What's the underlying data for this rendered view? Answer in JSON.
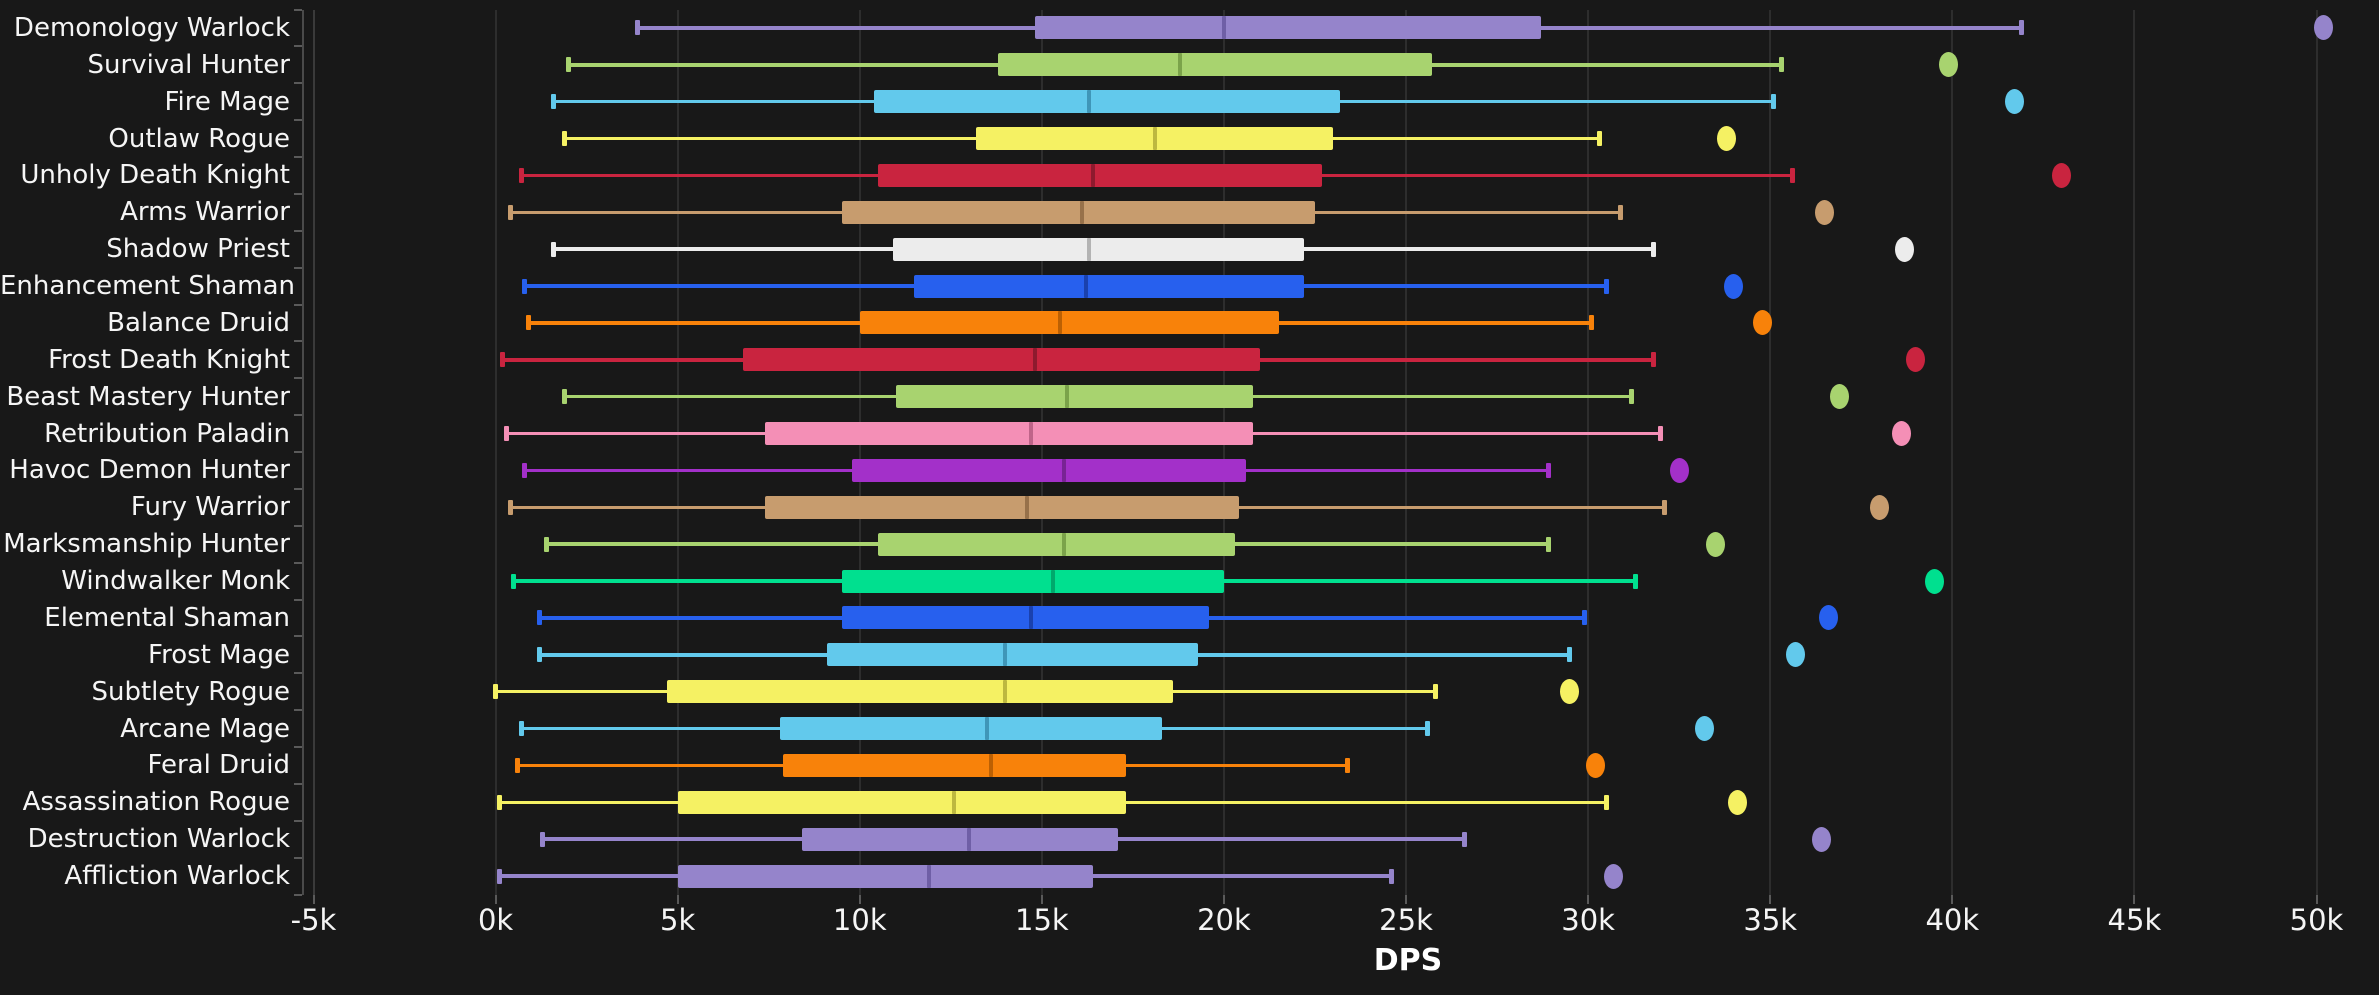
{
  "chart_data": {
    "type": "boxplot",
    "orientation": "horizontal",
    "title": "",
    "xlabel": "DPS",
    "x_range": [
      -5000,
      51700
    ],
    "grid": "vertical",
    "legend": "none",
    "x_ticks": [
      {
        "label": "-5k",
        "value": -5000
      },
      {
        "label": "0k",
        "value": 0
      },
      {
        "label": "5k",
        "value": 5000
      },
      {
        "label": "10k",
        "value": 10000
      },
      {
        "label": "15k",
        "value": 15000
      },
      {
        "label": "20k",
        "value": 20000
      },
      {
        "label": "25k",
        "value": 25000
      },
      {
        "label": "30k",
        "value": 30000
      },
      {
        "label": "35k",
        "value": 35000
      },
      {
        "label": "40k",
        "value": 40000
      },
      {
        "label": "45k",
        "value": 45000
      },
      {
        "label": "50k",
        "value": 50000
      }
    ],
    "colors": {
      "background": "#181818",
      "gridline": "#2d2d2d",
      "axis": "#4a4a4a",
      "tick": "#5a5a5a",
      "label_text": "#f5f5f5"
    },
    "series": [
      {
        "label": "Demonology Warlock",
        "color": "#9584CB",
        "median_color": "#6F5FA6",
        "low": 3900,
        "q1": 14800,
        "median": 20000,
        "q3": 28700,
        "high": 41900,
        "outliers": [
          50200
        ]
      },
      {
        "label": "Survival Hunter",
        "color": "#A8D36F",
        "median_color": "#7BA34A",
        "low": 2000,
        "q1": 13800,
        "median": 18800,
        "q3": 25700,
        "high": 35300,
        "outliers": [
          39900
        ]
      },
      {
        "label": "Fire Mage",
        "color": "#62C9EC",
        "median_color": "#3F96B8",
        "low": 1600,
        "q1": 10400,
        "median": 16300,
        "q3": 23200,
        "high": 35100,
        "outliers": [
          41700
        ]
      },
      {
        "label": "Outlaw Rogue",
        "color": "#F5F163",
        "median_color": "#BDB83F",
        "low": 1900,
        "q1": 13200,
        "median": 18100,
        "q3": 23000,
        "high": 30300,
        "outliers": [
          33800
        ]
      },
      {
        "label": "Unholy Death Knight",
        "color": "#C9243F",
        "median_color": "#8E1A2E",
        "low": 700,
        "q1": 10500,
        "median": 16400,
        "q3": 22700,
        "high": 35600,
        "outliers": [
          43000
        ]
      },
      {
        "label": "Arms Warrior",
        "color": "#C79C6E",
        "median_color": "#97714A",
        "low": 400,
        "q1": 9500,
        "median": 16100,
        "q3": 22500,
        "high": 30900,
        "outliers": [
          36500
        ]
      },
      {
        "label": "Shadow Priest",
        "color": "#ECECEC",
        "median_color": "#B3B3B3",
        "low": 1600,
        "q1": 10900,
        "median": 16300,
        "q3": 22200,
        "high": 31800,
        "outliers": [
          38700
        ]
      },
      {
        "label": "Enhancement Shaman",
        "color": "#2760EE",
        "median_color": "#1A41AE",
        "low": 800,
        "q1": 11500,
        "median": 16200,
        "q3": 22200,
        "high": 30500,
        "outliers": [
          34000
        ]
      },
      {
        "label": "Balance Druid",
        "color": "#F8820A",
        "median_color": "#BC6003",
        "low": 900,
        "q1": 10000,
        "median": 15500,
        "q3": 21500,
        "high": 30100,
        "outliers": [
          34800
        ]
      },
      {
        "label": "Frost Death Knight",
        "color": "#C9243F",
        "median_color": "#8E1A2E",
        "low": 200,
        "q1": 6800,
        "median": 14800,
        "q3": 21000,
        "high": 31800,
        "outliers": [
          39000
        ]
      },
      {
        "label": "Beast Mastery Hunter",
        "color": "#A8D36F",
        "median_color": "#7BA34A",
        "low": 1900,
        "q1": 11000,
        "median": 15700,
        "q3": 20800,
        "high": 31200,
        "outliers": [
          36900
        ]
      },
      {
        "label": "Retribution Paladin",
        "color": "#F48FB6",
        "median_color": "#BF6489",
        "low": 300,
        "q1": 7400,
        "median": 14700,
        "q3": 20800,
        "high": 32000,
        "outliers": [
          38600
        ]
      },
      {
        "label": "Havoc Demon Hunter",
        "color": "#A330C9",
        "median_color": "#782394",
        "low": 800,
        "q1": 9800,
        "median": 15600,
        "q3": 20600,
        "high": 28900,
        "outliers": [
          32500
        ]
      },
      {
        "label": "Fury Warrior",
        "color": "#C79C6E",
        "median_color": "#97714A",
        "low": 400,
        "q1": 7400,
        "median": 14600,
        "q3": 20400,
        "high": 32100,
        "outliers": [
          38000
        ]
      },
      {
        "label": "Marksmanship Hunter",
        "color": "#A8D36F",
        "median_color": "#7BA34A",
        "low": 1400,
        "q1": 10500,
        "median": 15600,
        "q3": 20300,
        "high": 28900,
        "outliers": [
          33500
        ]
      },
      {
        "label": "Windwalker Monk",
        "color": "#00E08F",
        "median_color": "#00A96C",
        "low": 500,
        "q1": 9500,
        "median": 15300,
        "q3": 20000,
        "high": 31300,
        "outliers": [
          39500
        ]
      },
      {
        "label": "Elemental Shaman",
        "color": "#2760EE",
        "median_color": "#1A41AE",
        "low": 1200,
        "q1": 9500,
        "median": 14700,
        "q3": 19600,
        "high": 29900,
        "outliers": [
          36600
        ]
      },
      {
        "label": "Frost Mage",
        "color": "#62C9EC",
        "median_color": "#3F96B8",
        "low": 1200,
        "q1": 9100,
        "median": 14000,
        "q3": 19300,
        "high": 29500,
        "outliers": [
          35700
        ]
      },
      {
        "label": "Subtlety Rogue",
        "color": "#F5F163",
        "median_color": "#BDB83F",
        "low": 0,
        "q1": 4700,
        "median": 14000,
        "q3": 18600,
        "high": 25800,
        "outliers": [
          29500
        ]
      },
      {
        "label": "Arcane Mage",
        "color": "#62C9EC",
        "median_color": "#3F96B8",
        "low": 700,
        "q1": 7800,
        "median": 13500,
        "q3": 18300,
        "high": 25600,
        "outliers": [
          33200
        ]
      },
      {
        "label": "Feral Druid",
        "color": "#F8820A",
        "median_color": "#BC6003",
        "low": 600,
        "q1": 7900,
        "median": 13600,
        "q3": 17300,
        "high": 23400,
        "outliers": [
          30200
        ]
      },
      {
        "label": "Assassination Rogue",
        "color": "#F5F163",
        "median_color": "#BDB83F",
        "low": 100,
        "q1": 5000,
        "median": 12600,
        "q3": 17300,
        "high": 30500,
        "outliers": [
          34100
        ]
      },
      {
        "label": "Destruction Warlock",
        "color": "#9584CB",
        "median_color": "#6F5FA6",
        "low": 1300,
        "q1": 8400,
        "median": 13000,
        "q3": 17100,
        "high": 26600,
        "outliers": [
          36400
        ]
      },
      {
        "label": "Affliction Warlock",
        "color": "#9584CB",
        "median_color": "#6F5FA6",
        "low": 100,
        "q1": 5000,
        "median": 11900,
        "q3": 16400,
        "high": 24600,
        "outliers": [
          30700
        ]
      }
    ]
  }
}
